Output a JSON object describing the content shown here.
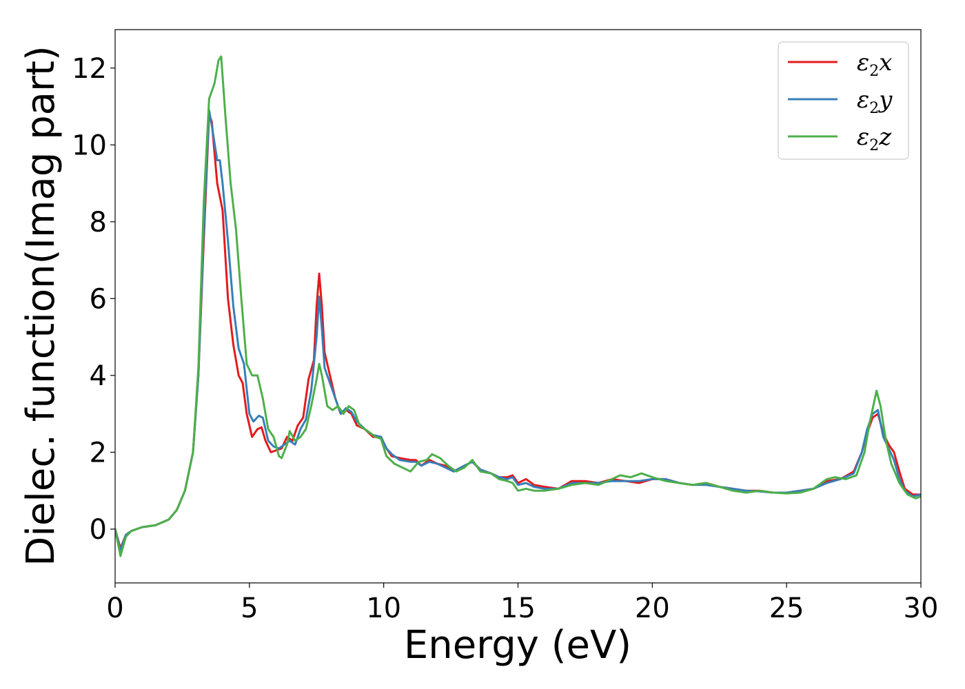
{
  "chart_data": {
    "type": "line",
    "xlabel": "Energy (eV)",
    "ylabel": "Dielec. function(Imag part)",
    "xlim": [
      0,
      30
    ],
    "ylim": [
      -1.4,
      13.0
    ],
    "xticks": [
      0,
      5,
      10,
      15,
      20,
      25,
      30
    ],
    "yticks": [
      0,
      2,
      4,
      6,
      8,
      10,
      12
    ],
    "grid": false,
    "legend_position": "top-right",
    "series": [
      {
        "name": "ε2x",
        "legend": {
          "base": "ε",
          "sub": "2",
          "tail": "x"
        },
        "color": "#e41a1c",
        "points": [
          [
            0,
            0
          ],
          [
            0.2,
            -0.5
          ],
          [
            0.4,
            -0.15
          ],
          [
            0.6,
            -0.05
          ],
          [
            1.0,
            0.05
          ],
          [
            1.5,
            0.1
          ],
          [
            2.0,
            0.25
          ],
          [
            2.3,
            0.5
          ],
          [
            2.6,
            1.0
          ],
          [
            2.9,
            2.0
          ],
          [
            3.1,
            4.0
          ],
          [
            3.3,
            7.5
          ],
          [
            3.5,
            10.8
          ],
          [
            3.6,
            10.6
          ],
          [
            3.8,
            9.0
          ],
          [
            4.0,
            8.3
          ],
          [
            4.2,
            6.0
          ],
          [
            4.4,
            4.8
          ],
          [
            4.6,
            4.0
          ],
          [
            4.75,
            3.8
          ],
          [
            4.9,
            3.0
          ],
          [
            5.1,
            2.4
          ],
          [
            5.3,
            2.6
          ],
          [
            5.45,
            2.65
          ],
          [
            5.6,
            2.3
          ],
          [
            5.8,
            2.0
          ],
          [
            6.0,
            2.05
          ],
          [
            6.2,
            2.1
          ],
          [
            6.4,
            2.4
          ],
          [
            6.6,
            2.3
          ],
          [
            6.8,
            2.7
          ],
          [
            7.0,
            2.9
          ],
          [
            7.2,
            3.9
          ],
          [
            7.4,
            4.4
          ],
          [
            7.5,
            5.8
          ],
          [
            7.6,
            6.65
          ],
          [
            7.7,
            5.8
          ],
          [
            7.8,
            4.6
          ],
          [
            8.0,
            4.0
          ],
          [
            8.2,
            3.4
          ],
          [
            8.4,
            3.0
          ],
          [
            8.6,
            3.1
          ],
          [
            8.8,
            3.0
          ],
          [
            9.0,
            2.7
          ],
          [
            9.3,
            2.6
          ],
          [
            9.6,
            2.4
          ],
          [
            9.9,
            2.4
          ],
          [
            10.1,
            2.1
          ],
          [
            10.3,
            1.9
          ],
          [
            10.6,
            1.85
          ],
          [
            11.0,
            1.8
          ],
          [
            11.2,
            1.8
          ],
          [
            11.4,
            1.65
          ],
          [
            11.7,
            1.8
          ],
          [
            12.0,
            1.7
          ],
          [
            12.3,
            1.65
          ],
          [
            12.6,
            1.5
          ],
          [
            13.0,
            1.65
          ],
          [
            13.3,
            1.75
          ],
          [
            13.6,
            1.55
          ],
          [
            14.0,
            1.45
          ],
          [
            14.3,
            1.35
          ],
          [
            14.6,
            1.35
          ],
          [
            14.8,
            1.4
          ],
          [
            15.0,
            1.2
          ],
          [
            15.3,
            1.3
          ],
          [
            15.6,
            1.15
          ],
          [
            16.0,
            1.1
          ],
          [
            16.5,
            1.05
          ],
          [
            17.0,
            1.25
          ],
          [
            17.5,
            1.25
          ],
          [
            18.0,
            1.2
          ],
          [
            18.5,
            1.3
          ],
          [
            19.0,
            1.25
          ],
          [
            19.5,
            1.2
          ],
          [
            20.0,
            1.3
          ],
          [
            20.5,
            1.3
          ],
          [
            21.0,
            1.2
          ],
          [
            21.5,
            1.15
          ],
          [
            22.0,
            1.2
          ],
          [
            22.5,
            1.1
          ],
          [
            23.0,
            1.05
          ],
          [
            23.5,
            1.0
          ],
          [
            24.0,
            1.0
          ],
          [
            24.5,
            0.95
          ],
          [
            25.0,
            0.95
          ],
          [
            25.5,
            1.0
          ],
          [
            26.0,
            1.05
          ],
          [
            26.5,
            1.25
          ],
          [
            27.0,
            1.3
          ],
          [
            27.5,
            1.5
          ],
          [
            27.8,
            2.0
          ],
          [
            28.0,
            2.5
          ],
          [
            28.2,
            2.9
          ],
          [
            28.4,
            3.0
          ],
          [
            28.6,
            2.5
          ],
          [
            28.8,
            2.2
          ],
          [
            29.0,
            2.0
          ],
          [
            29.2,
            1.5
          ],
          [
            29.4,
            1.05
          ],
          [
            29.7,
            0.9
          ],
          [
            30.0,
            0.9
          ]
        ]
      },
      {
        "name": "ε2y",
        "legend": {
          "base": "ε",
          "sub": "2",
          "tail": "y"
        },
        "color": "#377eb8",
        "points": [
          [
            0,
            0
          ],
          [
            0.2,
            -0.55
          ],
          [
            0.4,
            -0.15
          ],
          [
            0.6,
            -0.05
          ],
          [
            1.0,
            0.05
          ],
          [
            1.5,
            0.1
          ],
          [
            2.0,
            0.25
          ],
          [
            2.3,
            0.5
          ],
          [
            2.6,
            1.0
          ],
          [
            2.9,
            2.0
          ],
          [
            3.1,
            4.0
          ],
          [
            3.3,
            7.8
          ],
          [
            3.5,
            10.9
          ],
          [
            3.6,
            10.5
          ],
          [
            3.8,
            9.6
          ],
          [
            3.9,
            9.6
          ],
          [
            4.0,
            9.0
          ],
          [
            4.2,
            7.5
          ],
          [
            4.4,
            5.8
          ],
          [
            4.6,
            4.7
          ],
          [
            4.8,
            4.3
          ],
          [
            5.0,
            3.0
          ],
          [
            5.15,
            2.8
          ],
          [
            5.35,
            2.95
          ],
          [
            5.5,
            2.9
          ],
          [
            5.7,
            2.3
          ],
          [
            5.9,
            2.15
          ],
          [
            6.1,
            2.1
          ],
          [
            6.3,
            2.2
          ],
          [
            6.5,
            2.3
          ],
          [
            6.7,
            2.2
          ],
          [
            6.9,
            2.6
          ],
          [
            7.1,
            2.85
          ],
          [
            7.3,
            3.6
          ],
          [
            7.5,
            5.0
          ],
          [
            7.6,
            6.05
          ],
          [
            7.7,
            5.2
          ],
          [
            7.8,
            4.2
          ],
          [
            8.0,
            3.8
          ],
          [
            8.2,
            3.4
          ],
          [
            8.4,
            3.0
          ],
          [
            8.6,
            3.15
          ],
          [
            8.8,
            3.05
          ],
          [
            9.0,
            2.8
          ],
          [
            9.3,
            2.6
          ],
          [
            9.6,
            2.45
          ],
          [
            9.9,
            2.4
          ],
          [
            10.1,
            2.1
          ],
          [
            10.3,
            1.95
          ],
          [
            10.6,
            1.8
          ],
          [
            11.0,
            1.75
          ],
          [
            11.2,
            1.75
          ],
          [
            11.4,
            1.65
          ],
          [
            11.7,
            1.75
          ],
          [
            12.0,
            1.7
          ],
          [
            12.3,
            1.6
          ],
          [
            12.6,
            1.5
          ],
          [
            13.0,
            1.65
          ],
          [
            13.3,
            1.75
          ],
          [
            13.6,
            1.55
          ],
          [
            14.0,
            1.45
          ],
          [
            14.3,
            1.35
          ],
          [
            14.6,
            1.3
          ],
          [
            14.8,
            1.35
          ],
          [
            15.0,
            1.15
          ],
          [
            15.3,
            1.2
          ],
          [
            15.6,
            1.1
          ],
          [
            16.0,
            1.05
          ],
          [
            16.5,
            1.05
          ],
          [
            17.0,
            1.2
          ],
          [
            17.5,
            1.2
          ],
          [
            18.0,
            1.2
          ],
          [
            18.5,
            1.25
          ],
          [
            19.0,
            1.25
          ],
          [
            19.5,
            1.25
          ],
          [
            20.0,
            1.3
          ],
          [
            20.5,
            1.3
          ],
          [
            21.0,
            1.2
          ],
          [
            21.5,
            1.15
          ],
          [
            22.0,
            1.15
          ],
          [
            22.5,
            1.1
          ],
          [
            23.0,
            1.05
          ],
          [
            23.5,
            1.0
          ],
          [
            24.0,
            0.98
          ],
          [
            24.5,
            0.95
          ],
          [
            25.0,
            0.95
          ],
          [
            25.5,
            1.0
          ],
          [
            26.0,
            1.05
          ],
          [
            26.5,
            1.2
          ],
          [
            27.0,
            1.3
          ],
          [
            27.5,
            1.45
          ],
          [
            27.8,
            2.0
          ],
          [
            28.0,
            2.6
          ],
          [
            28.2,
            3.0
          ],
          [
            28.4,
            3.1
          ],
          [
            28.6,
            2.4
          ],
          [
            28.8,
            2.1
          ],
          [
            29.0,
            1.8
          ],
          [
            29.2,
            1.3
          ],
          [
            29.4,
            1.0
          ],
          [
            29.7,
            0.85
          ],
          [
            30.0,
            0.9
          ]
        ]
      },
      {
        "name": "ε2z",
        "legend": {
          "base": "ε",
          "sub": "2",
          "tail": "z"
        },
        "color": "#4daf4a",
        "points": [
          [
            0,
            0
          ],
          [
            0.2,
            -0.7
          ],
          [
            0.4,
            -0.2
          ],
          [
            0.6,
            -0.05
          ],
          [
            1.0,
            0.05
          ],
          [
            1.5,
            0.1
          ],
          [
            2.0,
            0.25
          ],
          [
            2.3,
            0.5
          ],
          [
            2.6,
            1.0
          ],
          [
            2.9,
            2.0
          ],
          [
            3.1,
            4.2
          ],
          [
            3.3,
            8.5
          ],
          [
            3.5,
            11.2
          ],
          [
            3.7,
            11.6
          ],
          [
            3.85,
            12.2
          ],
          [
            3.95,
            12.3
          ],
          [
            4.1,
            10.8
          ],
          [
            4.3,
            9.0
          ],
          [
            4.5,
            7.8
          ],
          [
            4.7,
            6.0
          ],
          [
            4.9,
            4.3
          ],
          [
            5.1,
            4.0
          ],
          [
            5.3,
            4.0
          ],
          [
            5.5,
            3.4
          ],
          [
            5.7,
            2.6
          ],
          [
            5.9,
            2.4
          ],
          [
            6.1,
            1.9
          ],
          [
            6.2,
            1.85
          ],
          [
            6.4,
            2.2
          ],
          [
            6.5,
            2.55
          ],
          [
            6.7,
            2.3
          ],
          [
            6.9,
            2.4
          ],
          [
            7.1,
            2.6
          ],
          [
            7.3,
            3.2
          ],
          [
            7.5,
            3.9
          ],
          [
            7.6,
            4.3
          ],
          [
            7.7,
            4.0
          ],
          [
            7.9,
            3.2
          ],
          [
            8.1,
            3.1
          ],
          [
            8.3,
            3.2
          ],
          [
            8.5,
            3.0
          ],
          [
            8.7,
            3.2
          ],
          [
            8.9,
            3.1
          ],
          [
            9.1,
            2.7
          ],
          [
            9.4,
            2.55
          ],
          [
            9.7,
            2.4
          ],
          [
            9.9,
            2.35
          ],
          [
            10.1,
            1.9
          ],
          [
            10.4,
            1.7
          ],
          [
            10.7,
            1.6
          ],
          [
            11.0,
            1.5
          ],
          [
            11.3,
            1.75
          ],
          [
            11.6,
            1.8
          ],
          [
            11.8,
            1.95
          ],
          [
            12.1,
            1.85
          ],
          [
            12.4,
            1.65
          ],
          [
            12.7,
            1.5
          ],
          [
            13.0,
            1.6
          ],
          [
            13.3,
            1.8
          ],
          [
            13.6,
            1.5
          ],
          [
            14.0,
            1.45
          ],
          [
            14.3,
            1.3
          ],
          [
            14.6,
            1.25
          ],
          [
            14.8,
            1.2
          ],
          [
            15.0,
            1.0
          ],
          [
            15.3,
            1.05
          ],
          [
            15.6,
            1.0
          ],
          [
            16.0,
            1.0
          ],
          [
            16.5,
            1.05
          ],
          [
            17.0,
            1.15
          ],
          [
            17.5,
            1.2
          ],
          [
            18.0,
            1.15
          ],
          [
            18.5,
            1.3
          ],
          [
            18.8,
            1.4
          ],
          [
            19.2,
            1.35
          ],
          [
            19.6,
            1.45
          ],
          [
            20.0,
            1.35
          ],
          [
            20.5,
            1.25
          ],
          [
            21.0,
            1.2
          ],
          [
            21.5,
            1.15
          ],
          [
            22.0,
            1.2
          ],
          [
            22.5,
            1.1
          ],
          [
            23.0,
            1.0
          ],
          [
            23.5,
            0.95
          ],
          [
            24.0,
            1.0
          ],
          [
            24.5,
            0.95
          ],
          [
            25.0,
            0.93
          ],
          [
            25.5,
            0.95
          ],
          [
            26.0,
            1.05
          ],
          [
            26.5,
            1.3
          ],
          [
            26.8,
            1.35
          ],
          [
            27.2,
            1.3
          ],
          [
            27.6,
            1.4
          ],
          [
            27.9,
            2.0
          ],
          [
            28.1,
            2.8
          ],
          [
            28.35,
            3.6
          ],
          [
            28.5,
            3.2
          ],
          [
            28.7,
            2.3
          ],
          [
            28.9,
            1.7
          ],
          [
            29.2,
            1.2
          ],
          [
            29.5,
            0.9
          ],
          [
            29.8,
            0.8
          ],
          [
            30.0,
            0.85
          ]
        ]
      }
    ]
  }
}
